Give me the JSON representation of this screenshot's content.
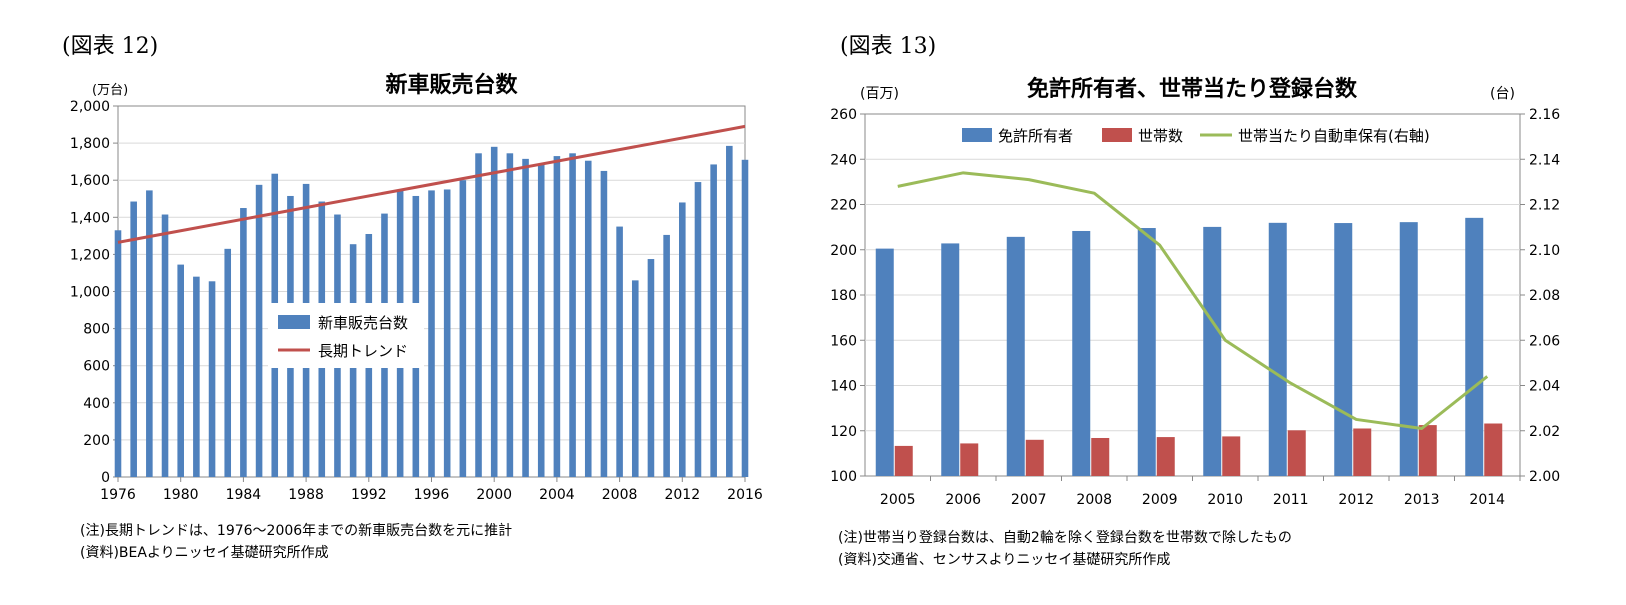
{
  "figures": [
    {
      "label": "(図表 12)",
      "notes": [
        "(注)長期トレンドは、1976〜2006年までの新車販売台数を元に推計",
        "(資料)BEAよりニッセイ基礎研究所作成"
      ]
    },
    {
      "label": "(図表 13)",
      "notes": [
        "(注)世帯当り登録台数は、自動2輪を除く登録台数を世帯数で除したもの",
        "(資料)交通省、センサスよりニッセイ基礎研究所作成"
      ]
    }
  ],
  "chart_data": [
    {
      "type": "bar",
      "title": "新車販売台数",
      "unit": "(万台)",
      "x": [
        1976,
        1977,
        1978,
        1979,
        1980,
        1981,
        1982,
        1983,
        1984,
        1985,
        1986,
        1987,
        1988,
        1989,
        1990,
        1991,
        1992,
        1993,
        1994,
        1995,
        1996,
        1997,
        1998,
        1999,
        2000,
        2001,
        2002,
        2003,
        2004,
        2005,
        2006,
        2007,
        2008,
        2009,
        2010,
        2011,
        2012,
        2013,
        2014,
        2015,
        2016
      ],
      "xticks": [
        "1976",
        "1980",
        "1984",
        "1988",
        "1992",
        "1996",
        "2000",
        "2004",
        "2008",
        "2012",
        "2016"
      ],
      "ylim": [
        0,
        2000
      ],
      "yticks": [
        "0",
        "200",
        "400",
        "600",
        "800",
        "1,000",
        "1,200",
        "1,400",
        "1,600",
        "1,800",
        "2,000"
      ],
      "series": [
        {
          "name": "新車販売台数",
          "color": "#4F81BD",
          "values": [
            1330,
            1485,
            1545,
            1415,
            1145,
            1080,
            1055,
            1230,
            1450,
            1575,
            1635,
            1515,
            1580,
            1485,
            1415,
            1255,
            1310,
            1420,
            1545,
            1515,
            1545,
            1550,
            1600,
            1745,
            1780,
            1745,
            1715,
            1690,
            1730,
            1745,
            1705,
            1650,
            1350,
            1060,
            1175,
            1305,
            1480,
            1590,
            1685,
            1785,
            1710
          ]
        },
        {
          "name": "長期トレンド",
          "color": "#C0504D",
          "type": "line",
          "x": [
            1976,
            2016
          ],
          "values": [
            1265,
            1890
          ]
        }
      ],
      "legend": "center"
    },
    {
      "type": "bar",
      "title": "免許所有者、世帯当たり登録台数",
      "unit_left": "(百万)",
      "unit_right": "(台)",
      "categories": [
        "2005",
        "2006",
        "2007",
        "2008",
        "2009",
        "2010",
        "2011",
        "2012",
        "2013",
        "2014"
      ],
      "ylim": [
        100,
        260
      ],
      "yticks": [
        "100",
        "120",
        "140",
        "160",
        "180",
        "200",
        "220",
        "240",
        "260"
      ],
      "y2lim": [
        2.0,
        2.16
      ],
      "y2ticks": [
        "2.00",
        "2.02",
        "2.04",
        "2.06",
        "2.08",
        "2.10",
        "2.12",
        "2.14",
        "2.16"
      ],
      "series": [
        {
          "name": "免許所有者",
          "color": "#4F81BD",
          "values": [
            200.5,
            202.8,
            205.7,
            208.3,
            209.6,
            210.1,
            211.9,
            211.8,
            212.2,
            214.1
          ]
        },
        {
          "name": "世帯数",
          "color": "#C0504D",
          "values": [
            113.3,
            114.4,
            116.0,
            116.8,
            117.2,
            117.5,
            120.2,
            121.0,
            122.5,
            123.2
          ]
        },
        {
          "name": "世帯当たり自動車保有(右軸)",
          "color": "#9BBB59",
          "type": "line",
          "axis": "right",
          "values": [
            2.128,
            2.134,
            2.131,
            2.125,
            2.102,
            2.06,
            2.041,
            2.025,
            2.021,
            2.044
          ]
        }
      ],
      "legend": "top"
    }
  ]
}
